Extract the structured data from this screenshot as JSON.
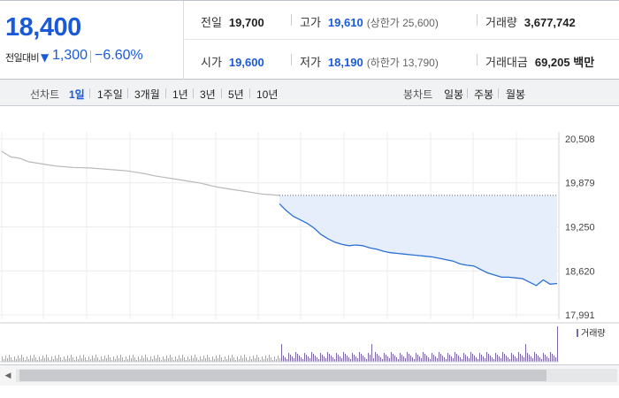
{
  "quote": {
    "price": "18,400",
    "change_label": "전일대비",
    "change_arrow": "▼",
    "change_value": "1,300",
    "change_rate": "−6.60%",
    "prev_close_label": "전일",
    "prev_close": "19,700",
    "high_label": "고가",
    "high": "19,610",
    "upper_limit": "(상한가 25,600)",
    "volume_label": "거래량",
    "volume": "3,677,742",
    "open_label": "시가",
    "open": "19,600",
    "low_label": "저가",
    "low": "18,190",
    "lower_limit": "(하한가 13,790)",
    "amount_label": "거래대금",
    "amount": "69,205",
    "amount_unit": "백만"
  },
  "toolbar": {
    "line_chart_label": "선차트",
    "periods": [
      "1일",
      "1주일",
      "3개월",
      "1년",
      "3년",
      "5년",
      "10년"
    ],
    "active_period": "1일",
    "candle_chart_label": "봉차트",
    "candle_periods": [
      "일봉",
      "주봉",
      "월봉"
    ]
  },
  "colors": {
    "accent_blue": "#1a5ad8",
    "line_today": "#2a6fd6",
    "line_prev": "#b9b9b9",
    "fill_today": "#e6eefb",
    "volume_today": "#7b66a8",
    "volume_prev": "#a8a8a8"
  },
  "chart_data": {
    "type": "line",
    "title": "",
    "y_ticks": [
      "20,508",
      "19,879",
      "19,250",
      "18,620",
      "17,991"
    ],
    "ylim": [
      17991,
      20508
    ],
    "reference_price": 19700,
    "volume_legend": "거래량",
    "series": [
      {
        "values": [
          20330,
          20250,
          20230,
          20180,
          20160,
          20140,
          20120,
          20110,
          20100,
          20095,
          20090,
          20080,
          20070,
          20060,
          20050,
          20030,
          20010,
          19980,
          19960,
          19940,
          19920,
          19900,
          19880,
          19850,
          19820,
          19800,
          19780,
          19760,
          19740,
          19720,
          19710,
          19700
        ]
      },
      {
        "values": [
          19580,
          19480,
          19400,
          19350,
          19300,
          19230,
          19140,
          19080,
          19030,
          19000,
          18980,
          18990,
          18980,
          18950,
          18930,
          18900,
          18880,
          18870,
          18860,
          18850,
          18840,
          18830,
          18820,
          18800,
          18780,
          18760,
          18720,
          18700,
          18690,
          18640,
          18590,
          18560,
          18530,
          18530,
          18520,
          18510,
          18460,
          18410,
          18490,
          18430,
          18440
        ]
      }
    ]
  }
}
